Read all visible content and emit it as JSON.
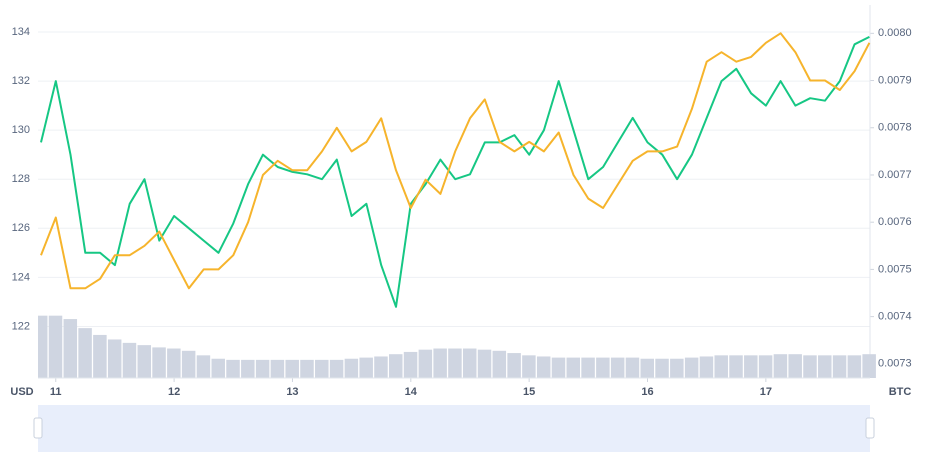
{
  "chart_data": {
    "type": "line",
    "x": [
      10.875,
      11.0,
      11.125,
      11.25,
      11.375,
      11.5,
      11.625,
      11.75,
      11.875,
      12.0,
      12.125,
      12.25,
      12.375,
      12.5,
      12.625,
      12.75,
      12.875,
      13.0,
      13.125,
      13.25,
      13.375,
      13.5,
      13.625,
      13.75,
      13.875,
      14.0,
      14.125,
      14.25,
      14.375,
      14.5,
      14.625,
      14.75,
      14.875,
      15.0,
      15.125,
      15.25,
      15.375,
      15.5,
      15.625,
      15.75,
      15.875,
      16.0,
      16.125,
      16.25,
      16.375,
      16.5,
      16.625,
      16.75,
      16.875,
      17.0,
      17.125,
      17.25,
      17.375,
      17.5,
      17.625,
      17.75,
      17.875
    ],
    "xlim": [
      10.85,
      17.88
    ],
    "xticks": [
      11,
      12,
      13,
      14,
      15,
      16,
      17
    ],
    "ylim": [
      119.9,
      135.1
    ],
    "yticks": [
      122,
      124,
      126,
      128,
      130,
      132,
      134
    ],
    "y2lim": [
      0.00727,
      0.00806
    ],
    "y2ticks": [
      {
        "value": 0.0073,
        "label": "0.0073"
      },
      {
        "value": 0.0074,
        "label": "0.0074"
      },
      {
        "value": 0.0075,
        "label": "0.0075"
      },
      {
        "value": 0.0076,
        "label": "0.0076"
      },
      {
        "value": 0.0077,
        "label": "0.0077"
      },
      {
        "value": 0.0078,
        "label": "0.0078"
      },
      {
        "value": 0.0079,
        "label": "0.0079"
      },
      {
        "value": 0.008,
        "label": "0.0080"
      }
    ],
    "y_label": "USD",
    "y2_label": "BTC",
    "grid": true,
    "series": [
      {
        "color": "#16c784",
        "values": [
          129.5,
          132,
          129,
          125,
          125,
          124.5,
          127,
          128,
          125.5,
          126.5,
          126,
          125.5,
          125,
          126.2,
          127.8,
          129,
          128.5,
          128.3,
          128.2,
          128,
          128.8,
          126.5,
          127,
          124.5,
          122.8,
          127,
          127.8,
          128.8,
          128,
          128.2,
          129.5,
          129.5,
          129.8,
          129,
          130,
          132,
          130,
          128,
          128.5,
          129.5,
          130.5,
          129.5,
          129,
          128,
          129,
          130.5,
          132,
          132.5,
          131.5,
          131,
          132,
          131,
          131.3,
          131.2,
          132,
          133.5,
          133.8
        ]
      },
      {
        "color": "#f6b42c",
        "axis": "y2",
        "values": [
          0.00753,
          0.00761,
          0.00746,
          0.00746,
          0.00748,
          0.00753,
          0.00753,
          0.00755,
          0.00758,
          0.00752,
          0.00746,
          0.0075,
          0.0075,
          0.00753,
          0.0076,
          0.0077,
          0.00773,
          0.00771,
          0.00771,
          0.00775,
          0.0078,
          0.00775,
          0.00777,
          0.00782,
          0.00771,
          0.00763,
          0.00769,
          0.00766,
          0.00775,
          0.00782,
          0.00786,
          0.00777,
          0.00775,
          0.00777,
          0.00775,
          0.00779,
          0.0077,
          0.00765,
          0.00763,
          0.00768,
          0.00773,
          0.00775,
          0.00775,
          0.00776,
          0.00784,
          0.00794,
          0.00796,
          0.00794,
          0.00795,
          0.00798,
          0.008,
          0.00796,
          0.0079,
          0.0079,
          0.00788,
          0.00792,
          0.00798
        ]
      }
    ],
    "volume": {
      "color": "#cfd5e1",
      "ylim": [
        0,
        60
      ],
      "values": [
        55,
        55,
        52,
        44,
        38,
        34,
        31,
        29,
        27,
        26,
        24,
        20,
        17,
        16,
        16,
        16,
        16,
        16,
        16,
        16,
        16,
        17,
        18,
        19,
        21,
        23,
        25,
        26,
        26,
        26,
        25,
        24,
        22,
        20,
        19,
        18,
        18,
        18,
        18,
        18,
        18,
        17,
        17,
        17,
        18,
        19,
        20,
        20,
        20,
        20,
        21,
        21,
        20,
        20,
        20,
        20,
        21
      ]
    }
  }
}
